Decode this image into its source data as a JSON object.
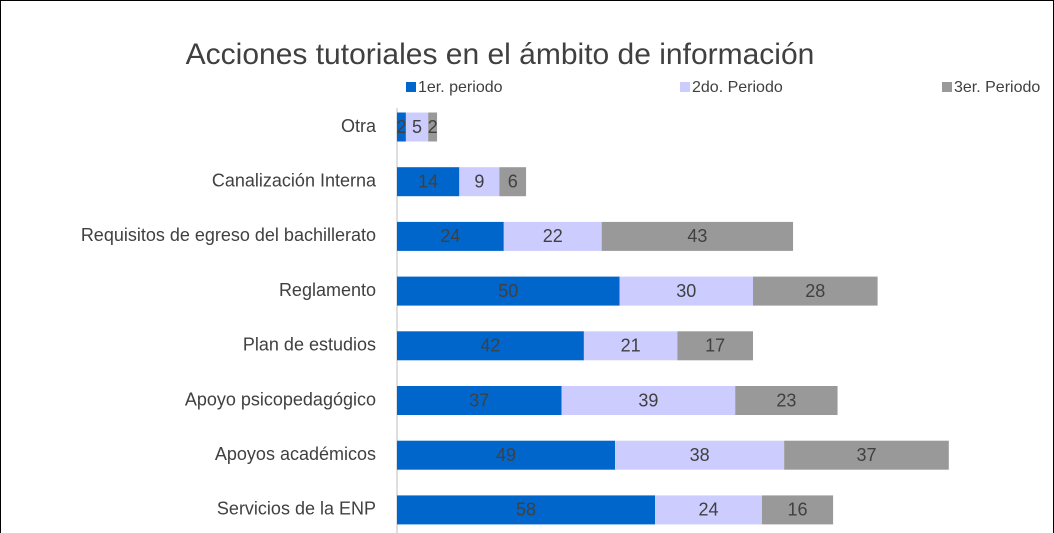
{
  "chart_data": {
    "type": "stacked-bar-horizontal",
    "title": "Acciones tutoriales en el ámbito de información",
    "categories": [
      "Otra",
      "Canalización Interna",
      "Requisitos de egreso del bachillerato",
      "Reglamento",
      "Plan de estudios",
      "Apoyo psicopedagógico",
      "Apoyos académicos",
      "Servicios de la ENP"
    ],
    "series": [
      {
        "name": "1er. periodo",
        "color": "#0066cc",
        "values": [
          2,
          14,
          24,
          50,
          42,
          37,
          49,
          58
        ]
      },
      {
        "name": "2do. Periodo",
        "color": "#ccccff",
        "values": [
          5,
          9,
          22,
          30,
          21,
          39,
          38,
          24
        ]
      },
      {
        "name": "3er. Periodo",
        "color": "#999999",
        "values": [
          2,
          6,
          43,
          28,
          17,
          23,
          37,
          16
        ]
      }
    ],
    "legend": "top"
  }
}
